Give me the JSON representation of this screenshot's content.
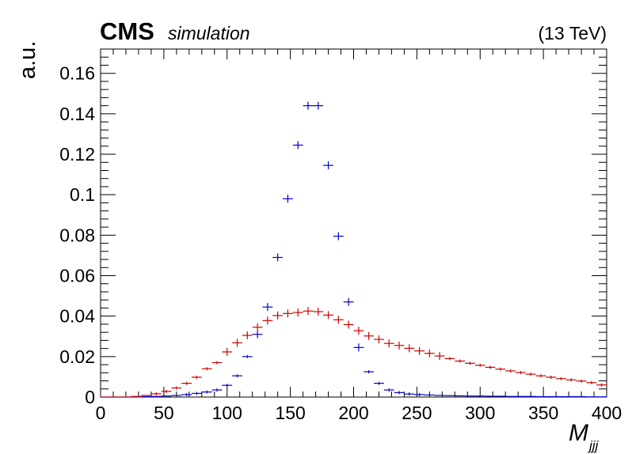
{
  "header": {
    "experiment": "CMS",
    "tag": "simulation",
    "energy": "(13 TeV)"
  },
  "chart_data": {
    "type": "scatter",
    "title": "",
    "xlabel": "M",
    "xlabel_subscript": "jjj",
    "ylabel": "a.u.",
    "xlim": [
      0,
      400
    ],
    "ylim": [
      0,
      0.172
    ],
    "x_ticks": [
      0,
      50,
      100,
      150,
      200,
      250,
      300,
      350,
      400
    ],
    "x_tick_labels": [
      "0",
      "50",
      "100",
      "150",
      "200",
      "250",
      "300",
      "350",
      "400"
    ],
    "y_ticks": [
      0,
      0.02,
      0.04,
      0.06,
      0.08,
      0.1,
      0.12,
      0.14,
      0.16
    ],
    "y_tick_labels": [
      "0",
      "0.02",
      "0.04",
      "0.06",
      "0.08",
      "0.1",
      "0.12",
      "0.14",
      "0.16"
    ],
    "bin_width": 8,
    "grid": false,
    "legend": "none",
    "x": [
      4,
      12,
      20,
      28,
      36,
      44,
      52,
      60,
      68,
      76,
      84,
      92,
      100,
      108,
      116,
      124,
      132,
      140,
      148,
      156,
      164,
      172,
      180,
      188,
      196,
      204,
      212,
      220,
      228,
      236,
      244,
      252,
      260,
      268,
      276,
      284,
      292,
      300,
      308,
      316,
      324,
      332,
      340,
      348,
      356,
      364,
      372,
      380,
      388,
      396
    ],
    "series": [
      {
        "color": "#0000cc",
        "values": [
          0,
          0,
          0,
          0.0001,
          0.0002,
          0.0003,
          0.0005,
          0.0008,
          0.0012,
          0.0018,
          0.0025,
          0.0035,
          0.0058,
          0.0105,
          0.02,
          0.031,
          0.0445,
          0.069,
          0.098,
          0.1245,
          0.144,
          0.144,
          0.1145,
          0.0795,
          0.047,
          0.0245,
          0.0125,
          0.0068,
          0.0035,
          0.0022,
          0.0015,
          0.0012,
          0.001,
          0.0008,
          0.0007,
          0.0006,
          0.0005,
          0.0005,
          0.0004,
          0.0004,
          0.0003,
          0.0003,
          0.0003,
          0.0002,
          0.0002,
          0.0002,
          0.0002,
          0.0002,
          0.0001,
          0.0001
        ]
      },
      {
        "color": "#cc0000",
        "values": [
          0,
          0,
          0,
          0.0003,
          0.0008,
          0.0016,
          0.0028,
          0.0045,
          0.0068,
          0.0098,
          0.014,
          0.017,
          0.0223,
          0.0268,
          0.0305,
          0.0345,
          0.0378,
          0.0403,
          0.0413,
          0.0418,
          0.0425,
          0.0422,
          0.0405,
          0.0382,
          0.0358,
          0.0328,
          0.0302,
          0.0285,
          0.0265,
          0.0255,
          0.0241,
          0.0228,
          0.0216,
          0.0203,
          0.019,
          0.0178,
          0.0167,
          0.0157,
          0.0147,
          0.0138,
          0.0129,
          0.0121,
          0.0113,
          0.0105,
          0.0098,
          0.0091,
          0.0085,
          0.0079,
          0.0071,
          0.006
        ]
      }
    ]
  }
}
